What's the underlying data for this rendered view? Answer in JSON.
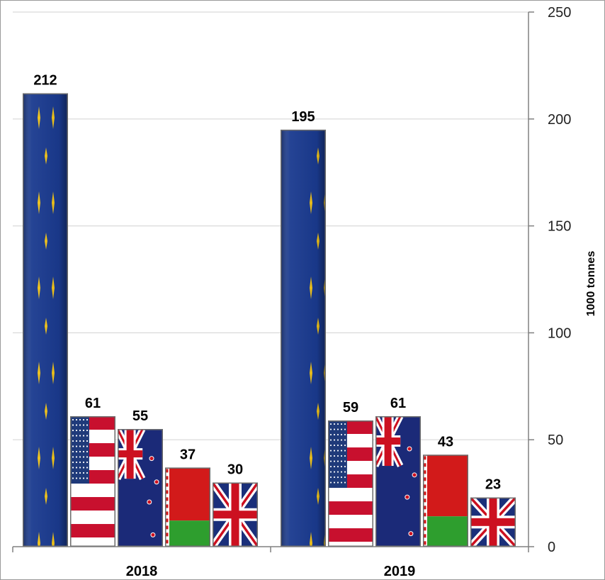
{
  "chart_data": {
    "type": "bar",
    "categories": [
      "2018",
      "2019"
    ],
    "series": [
      {
        "flag": "eu",
        "values": [
          212,
          195
        ]
      },
      {
        "flag": "us",
        "values": [
          61,
          59
        ]
      },
      {
        "flag": "nz",
        "values": [
          55,
          61
        ]
      },
      {
        "flag": "by",
        "values": [
          37,
          43
        ]
      },
      {
        "flag": "uk",
        "values": [
          30,
          23
        ]
      }
    ],
    "ylabel": "1000 tonnes",
    "ylim": [
      0,
      250
    ],
    "yticks": [
      0,
      50,
      100,
      150,
      200,
      250
    ],
    "grid": true,
    "axis_side": "right",
    "legend": "none",
    "colors": {
      "eu_blue": "#1a3a8f",
      "star_gold": "#f2c418",
      "us_red": "#c8102e",
      "us_blue": "#1f3a7a",
      "nz_blue": "#1b2a78",
      "by_red": "#d21a1a",
      "by_green": "#2e9e2e",
      "uk_blue": "#1a2f7a",
      "uk_red": "#cc1020",
      "gridline": "#d9d9d9",
      "axis": "#808080"
    }
  }
}
